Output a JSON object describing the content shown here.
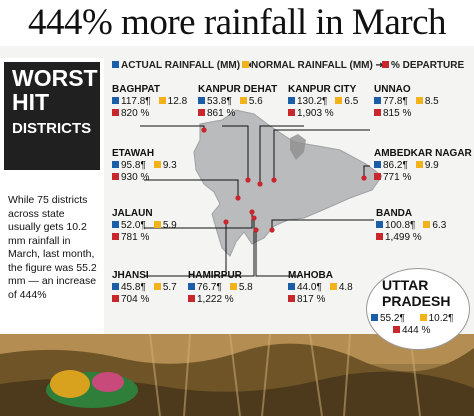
{
  "headline": "444% more rainfall in March",
  "legend": {
    "actual": "ACTUAL RAINFALL (MM)",
    "normal": "NORMAL RAINFALL (MM)",
    "departure": "% DEPARTURE"
  },
  "sidebar": {
    "worst": "WORST",
    "hit": "HIT",
    "districts": "DISTRICTS",
    "description": "While 75 districts across state usually gets 10.2 mm rainfall in March, last month, the figure was 55.2 mm — an increase of 444%"
  },
  "districts": [
    {
      "name": "BAGHPAT",
      "actual": "117.8",
      "normal": "12.8",
      "departure": "820 %"
    },
    {
      "name": "KANPUR DEHAT",
      "actual": "53.8",
      "normal": "5.6",
      "departure": "861 %"
    },
    {
      "name": "KANPUR CITY",
      "actual": "130.2",
      "normal": "6.5",
      "departure": "1,903 %"
    },
    {
      "name": "UNNAO",
      "actual": "77.8",
      "normal": "8.5",
      "departure": "815 %"
    },
    {
      "name": "ETAWAH",
      "actual": "95.8",
      "normal": "9.3",
      "departure": "930 %"
    },
    {
      "name": "AMBEDKAR NAGAR",
      "actual": "86.2",
      "normal": "9.9",
      "departure": "771 %"
    },
    {
      "name": "JALAUN",
      "actual": "52.0",
      "normal": "5.9",
      "departure": "781 %"
    },
    {
      "name": "BANDA",
      "actual": "100.8",
      "normal": "6.3",
      "departure": "1,499 %"
    },
    {
      "name": "JHANSI",
      "actual": "45.8",
      "normal": "5.7",
      "departure": "704 %"
    },
    {
      "name": "HAMIRPUR",
      "actual": "76.7",
      "normal": "5.8",
      "departure": "1,222 %"
    },
    {
      "name": "MAHOBA",
      "actual": "44.0",
      "normal": "4.8",
      "departure": "817 %"
    }
  ],
  "state": {
    "name_line1": "UTTAR",
    "name_line2": "PRADESH",
    "actual": "55.2",
    "normal": "10.2",
    "departure": "444 %"
  },
  "colors": {
    "actual": "#1a5ea8",
    "normal": "#f3b21b",
    "departure": "#c8272d"
  }
}
